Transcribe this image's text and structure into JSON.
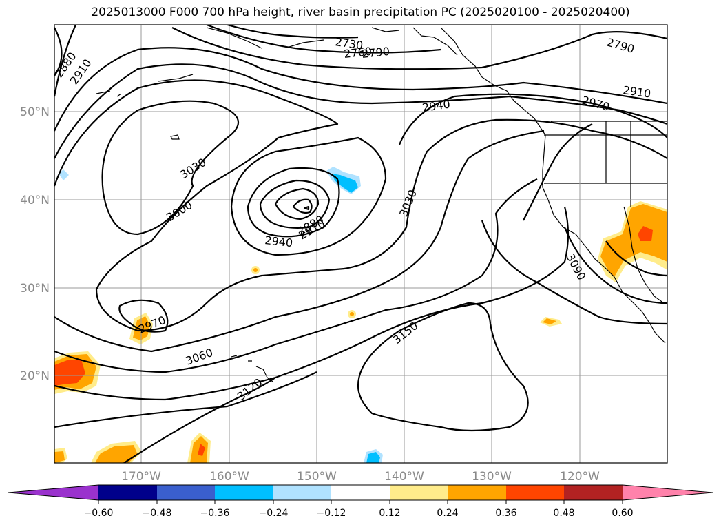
{
  "title": "2025013000 F000 700 hPa height, river basin precipitation PC (2025020100 - 2025020400)",
  "lat_labels": [
    "50°N",
    "40°N",
    "30°N",
    "20°N"
  ],
  "lon_labels": [
    "170°W",
    "160°W",
    "150°W",
    "140°W",
    "130°W",
    "120°W"
  ],
  "contour_labels": [
    "2880",
    "2910",
    "2730",
    "2760",
    "2790",
    "2790",
    "2940",
    "2910",
    "2970",
    "3030",
    "3000",
    "2880",
    "2910",
    "2940",
    "3030",
    "3090",
    "2970",
    "3060",
    "3150",
    "3120"
  ],
  "colorbar": {
    "colors": [
      "#9a32cd",
      "#00008b",
      "#3a5fcd",
      "#00bfff",
      "#b0e2ff",
      "#ffffff",
      "#ffec8b",
      "#ffa500",
      "#ff4500",
      "#b22222",
      "#ff82ab"
    ],
    "ticks": [
      "−0.60",
      "−0.48",
      "−0.36",
      "−0.24",
      "−0.12",
      "0.12",
      "0.24",
      "0.36",
      "0.48",
      "0.60"
    ]
  }
}
